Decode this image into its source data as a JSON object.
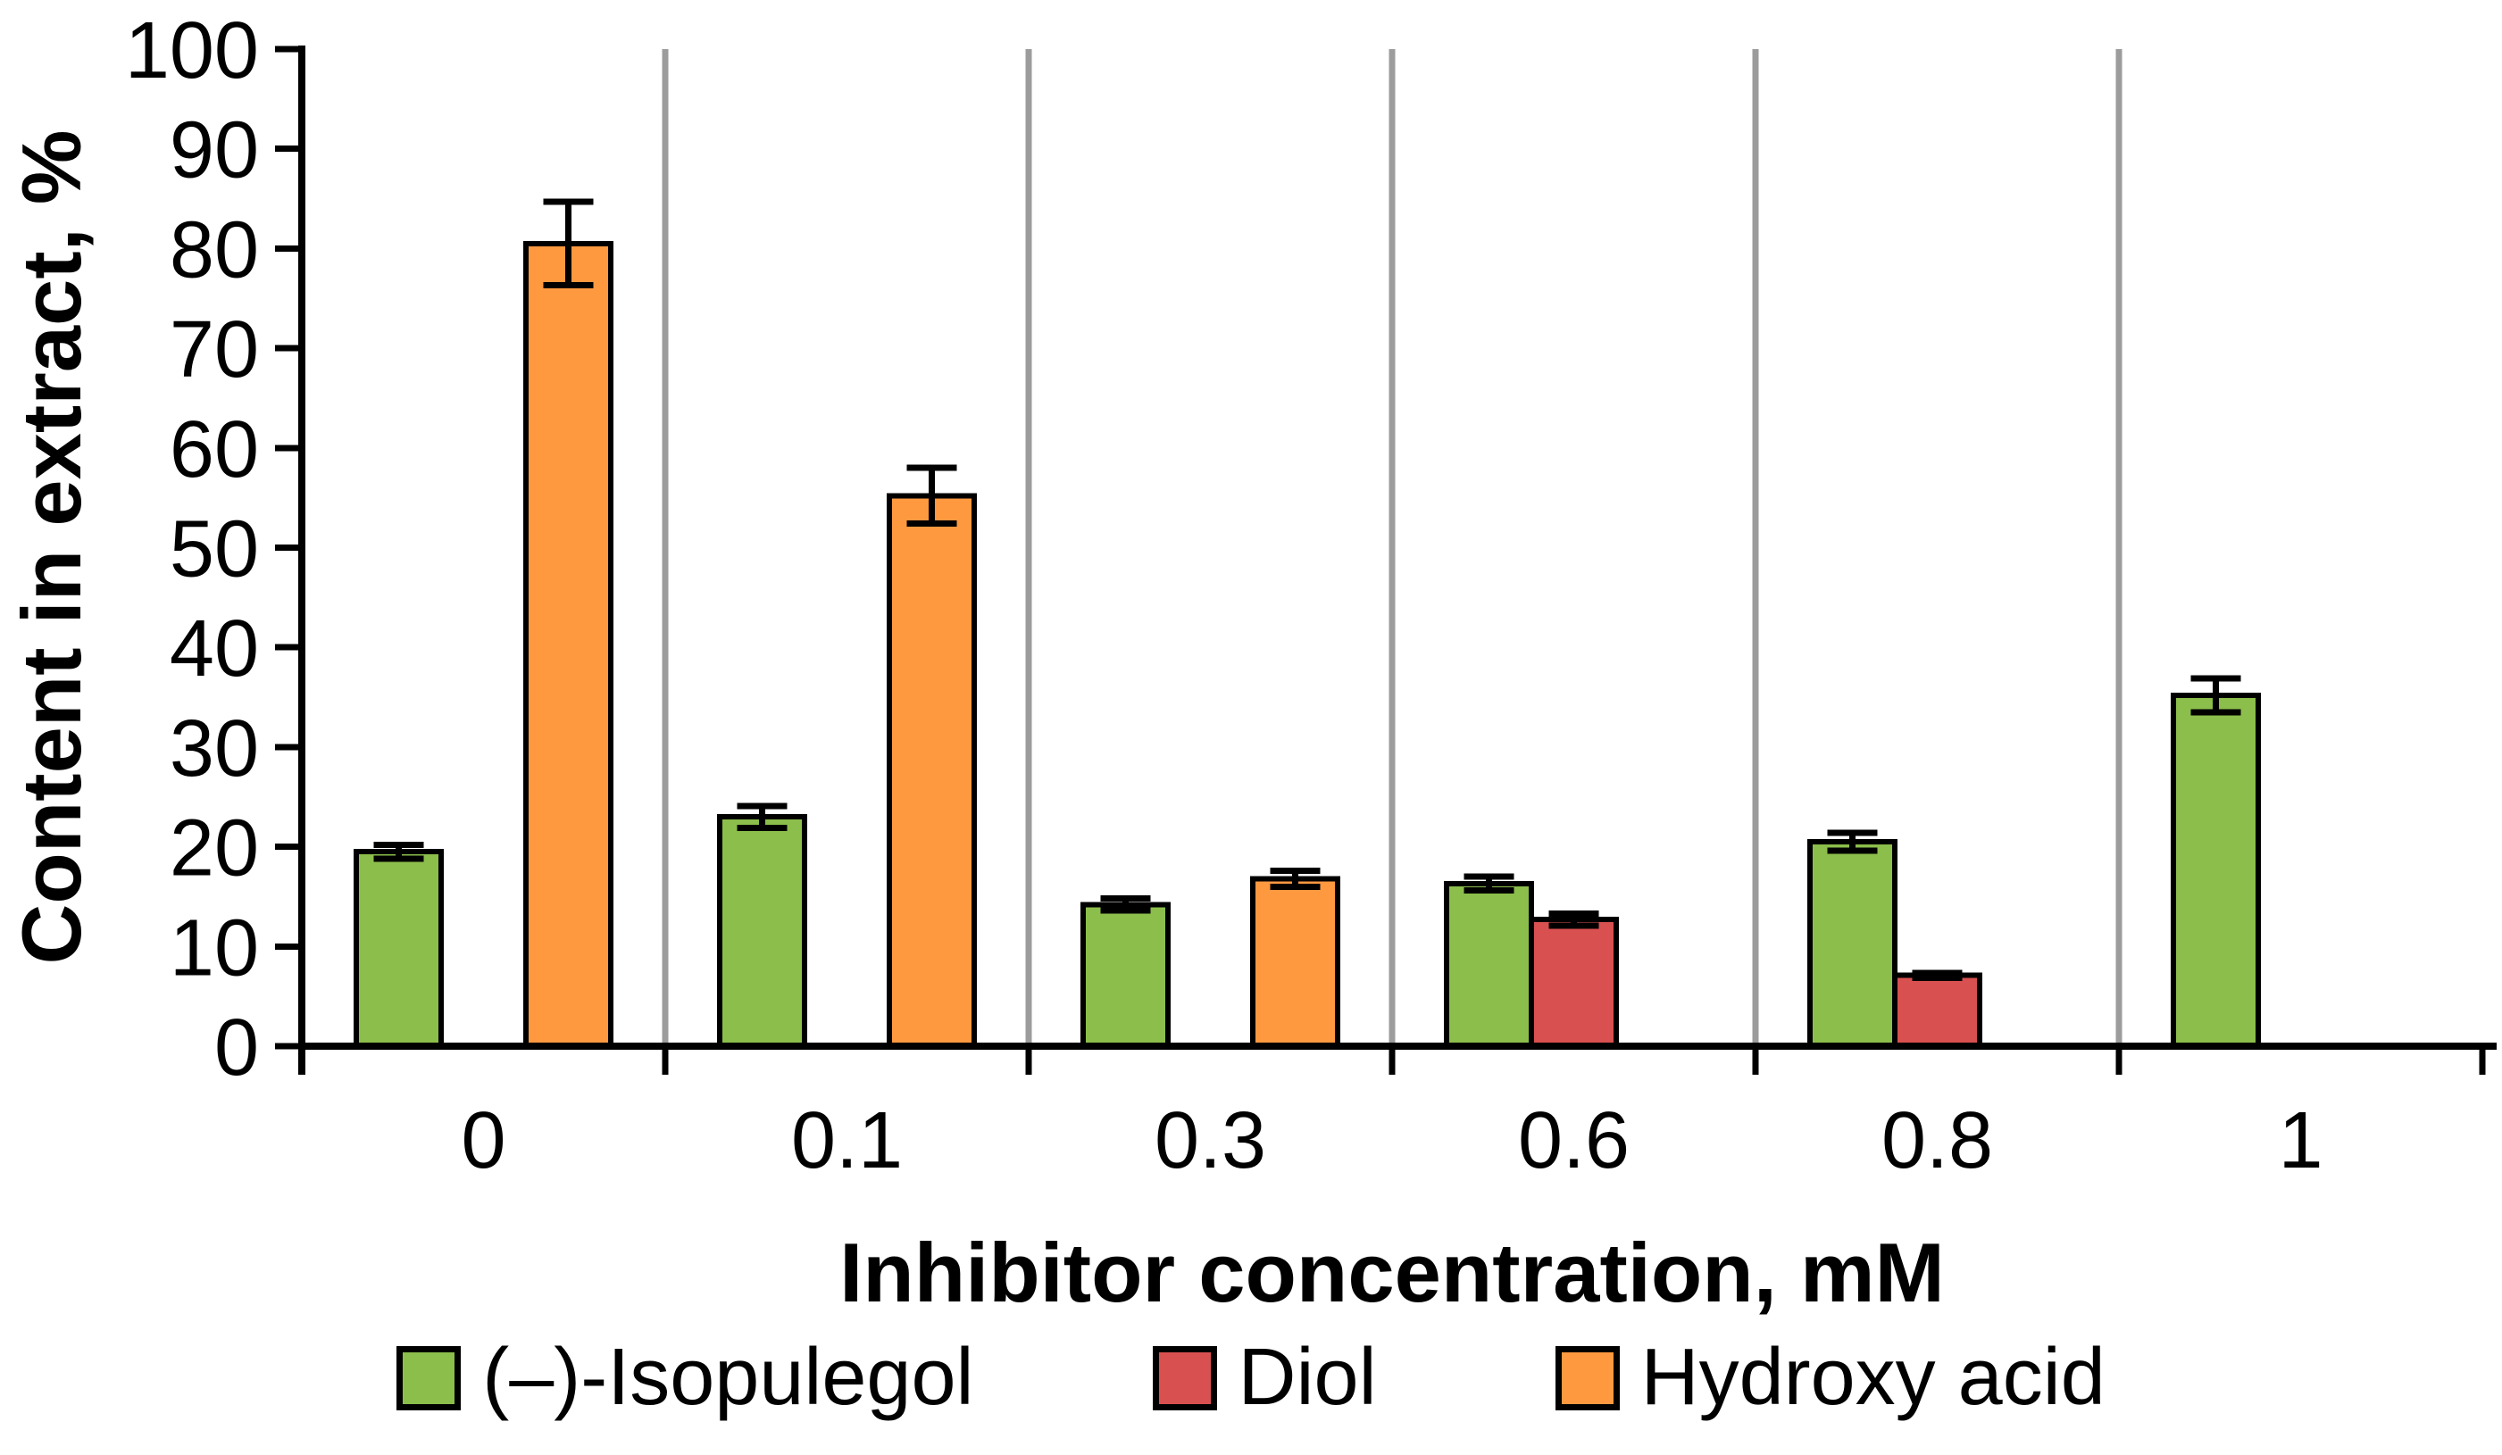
{
  "chart_data": {
    "type": "bar",
    "title": "",
    "xlabel": "Inhibitor concentration, mM",
    "ylabel": "Content in extract, %",
    "ylim": [
      0,
      100
    ],
    "yticks": [
      0,
      10,
      20,
      30,
      40,
      50,
      60,
      70,
      80,
      90,
      100
    ],
    "categories": [
      "0",
      "0.1",
      "0.3",
      "0.6",
      "0.8",
      "1"
    ],
    "grid": "vertical category separators only",
    "legend_position": "bottom",
    "series": [
      {
        "name": "(–)-Isopulegol",
        "color": "#8CBE4B",
        "values": [
          19.5,
          23.0,
          14.2,
          16.3,
          20.5,
          35.2
        ],
        "errors": [
          0.7,
          1.1,
          0.6,
          0.7,
          0.9,
          1.7
        ]
      },
      {
        "name": "Diol",
        "color": "#D95050",
        "values": [
          null,
          null,
          null,
          12.7,
          7.1,
          null
        ],
        "errors": [
          null,
          null,
          null,
          0.6,
          0.25,
          null
        ]
      },
      {
        "name": "Hydroxy acid",
        "color": "#FF9940",
        "values": [
          80.5,
          55.2,
          16.8,
          null,
          null,
          null
        ],
        "errors": [
          4.2,
          2.8,
          0.8,
          null,
          null,
          null
        ]
      }
    ]
  },
  "style_colors": {
    "gridline": "#9C9C9C",
    "axis": "#000000",
    "bar_border": "#000000",
    "error_bar": "#000000",
    "text": "#000000"
  }
}
